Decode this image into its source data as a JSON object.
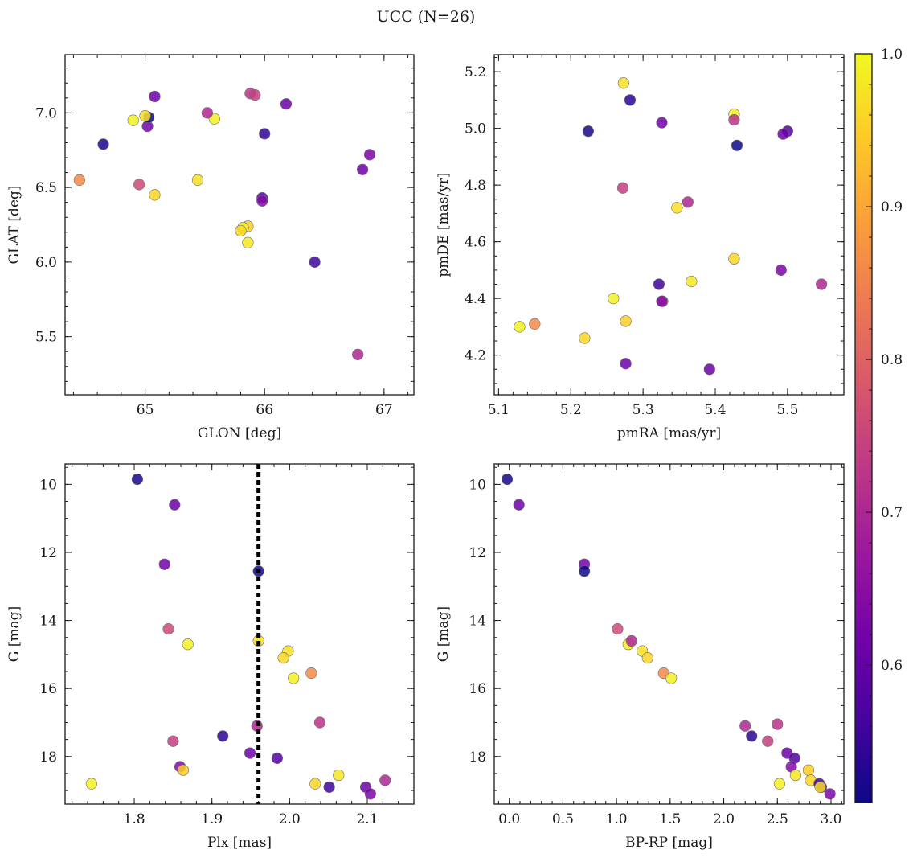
{
  "figure_title": "UCC (N=26)",
  "colorbar": {
    "min": 0.5101,
    "max": 1.0,
    "ticks": [
      0.6,
      0.7,
      0.8,
      0.9,
      1.0
    ],
    "tick_labels": [
      "0.6",
      "0.7",
      "0.8",
      "0.9",
      "1.0"
    ],
    "colormap": "plasma",
    "colors": [
      "#0d0887",
      "#46039f",
      "#7201a8",
      "#9c179e",
      "#bd3786",
      "#d8576b",
      "#ed7953",
      "#fb9f3a",
      "#fdca26",
      "#f0f921"
    ]
  },
  "chart_data": [
    {
      "type": "scatter",
      "xlabel": "GLON [deg]",
      "ylabel": "GLAT [deg]",
      "xlim": [
        64.33,
        67.25
      ],
      "ylim": [
        5.11,
        7.39
      ],
      "x_ticks": [
        65,
        66,
        67
      ],
      "x_tick_labels": [
        "65",
        "66",
        "67"
      ],
      "y_ticks": [
        5.5,
        6.0,
        6.5,
        7.0
      ],
      "y_tick_labels": [
        "5.5",
        "6.0",
        "6.5",
        "7.0"
      ],
      "x_minor": 0.2,
      "y_minor": 0.1,
      "invert_y": false,
      "x": [
        64.65,
        65.08,
        65.02,
        65.03,
        64.95,
        64.9,
        65.0,
        65.08,
        64.45,
        65.58,
        65.52,
        65.88,
        65.92,
        66.0,
        66.18,
        65.98,
        65.98,
        65.86,
        65.82,
        65.8,
        65.86,
        66.42,
        66.82,
        66.88,
        66.78,
        65.44
      ],
      "y": [
        6.79,
        7.11,
        6.91,
        6.97,
        6.52,
        6.95,
        6.98,
        6.45,
        6.55,
        6.96,
        7.0,
        7.13,
        7.12,
        6.86,
        7.06,
        6.43,
        6.41,
        6.24,
        6.23,
        6.21,
        6.13,
        6.0,
        6.62,
        6.72,
        5.38,
        6.55
      ]
    },
    {
      "type": "scatter",
      "xlabel": "pmRA [mas/yr]",
      "ylabel": "pmDE [mas/yr]",
      "xlim": [
        5.094,
        5.578
      ],
      "ylim": [
        4.06,
        5.26
      ],
      "x_ticks": [
        5.1,
        5.2,
        5.3,
        5.4,
        5.5
      ],
      "x_tick_labels": [
        "5.1",
        "5.2",
        "5.3",
        "5.4",
        "5.5"
      ],
      "y_ticks": [
        4.2,
        4.4,
        4.6,
        4.8,
        5.0,
        5.2
      ],
      "y_tick_labels": [
        "4.2",
        "4.4",
        "4.6",
        "4.8",
        "5.0",
        "5.2"
      ],
      "x_minor": 0.02,
      "y_minor": 0.05,
      "invert_y": false,
      "x": [
        5.224,
        5.276,
        5.326,
        5.43,
        5.327,
        5.426,
        5.273,
        5.219,
        5.15,
        5.259,
        5.362,
        5.426,
        5.272,
        5.282,
        5.392,
        5.5,
        5.326,
        5.276,
        5.129,
        5.426,
        5.367,
        5.322,
        5.494,
        5.491,
        5.547,
        5.347
      ],
      "y": [
        4.99,
        4.17,
        5.02,
        4.94,
        4.39,
        5.05,
        5.16,
        4.26,
        4.31,
        4.4,
        4.74,
        5.03,
        4.79,
        5.1,
        4.15,
        4.99,
        4.39,
        4.32,
        4.3,
        4.54,
        4.46,
        4.45,
        4.98,
        4.5,
        4.45,
        4.72
      ]
    },
    {
      "type": "scatter",
      "xlabel": "Plx [mas]",
      "ylabel": "G [mag]",
      "xlim": [
        1.711,
        2.16
      ],
      "ylim": [
        9.4,
        19.4
      ],
      "x_ticks": [
        1.8,
        1.9,
        2.0,
        2.1
      ],
      "x_tick_labels": [
        "1.8",
        "1.9",
        "2.0",
        "2.1"
      ],
      "y_ticks": [
        10,
        12,
        14,
        16,
        18
      ],
      "y_tick_labels": [
        "10",
        "12",
        "14",
        "16",
        "18"
      ],
      "x_minor": 0.02,
      "y_minor": 0.5,
      "invert_y": true,
      "vline": 1.96,
      "x": [
        1.804,
        1.852,
        1.839,
        1.96,
        1.844,
        1.869,
        1.998,
        1.992,
        2.028,
        2.005,
        1.958,
        2.039,
        1.85,
        1.914,
        1.949,
        1.984,
        1.859,
        1.863,
        1.745,
        2.033,
        2.063,
        2.051,
        2.098,
        2.104,
        2.123,
        1.96
      ],
      "y": [
        9.85,
        10.6,
        12.35,
        12.55,
        14.25,
        14.7,
        14.9,
        15.1,
        15.55,
        15.7,
        17.1,
        17.0,
        17.55,
        17.4,
        17.9,
        18.05,
        18.3,
        18.4,
        18.8,
        18.8,
        18.55,
        18.9,
        18.9,
        19.1,
        18.7,
        14.6
      ]
    },
    {
      "type": "scatter",
      "xlabel": "BP-RP [mag]",
      "ylabel": "G [mag]",
      "xlim": [
        -0.14,
        3.12
      ],
      "ylim": [
        9.4,
        19.4
      ],
      "x_ticks": [
        0.0,
        0.5,
        1.0,
        1.5,
        2.0,
        2.5,
        3.0
      ],
      "x_tick_labels": [
        "0.0",
        "0.5",
        "1.0",
        "1.5",
        "2.0",
        "2.5",
        "3.0"
      ],
      "x_minor": 0.1,
      "y_minor": 0.5,
      "y_ticks": [
        10,
        12,
        14,
        16,
        18
      ],
      "y_tick_labels": [
        "10",
        "12",
        "14",
        "16",
        "18"
      ],
      "invert_y": true,
      "x": [
        -0.02,
        0.09,
        0.7,
        0.7,
        1.01,
        1.11,
        1.24,
        1.29,
        1.44,
        1.51,
        2.2,
        2.5,
        2.41,
        2.26,
        2.59,
        2.66,
        2.63,
        2.79,
        2.52,
        2.81,
        2.67,
        2.89,
        2.91,
        2.99,
        1.14,
        2.9
      ],
      "y": [
        9.85,
        10.6,
        12.35,
        12.55,
        14.25,
        14.7,
        14.9,
        15.1,
        15.55,
        15.7,
        17.1,
        17.05,
        17.55,
        17.4,
        17.9,
        18.05,
        18.3,
        18.4,
        18.8,
        18.7,
        18.55,
        18.8,
        18.9,
        19.1,
        14.6,
        18.9
      ]
    }
  ],
  "probabilities": [
    0.52,
    0.61,
    0.62,
    0.51,
    0.76,
    0.99,
    0.97,
    0.96,
    0.86,
    0.99,
    0.7,
    0.72,
    0.74,
    0.54,
    0.61,
    0.58,
    0.64,
    0.95,
    0.99,
    0.96,
    0.98,
    0.56,
    0.61,
    0.63,
    0.7,
    0.97
  ]
}
